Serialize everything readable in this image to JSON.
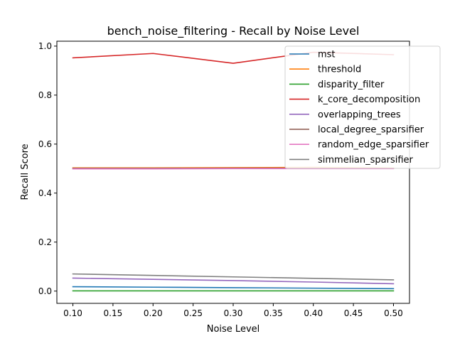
{
  "chart_data": {
    "type": "line",
    "title": "bench_noise_filtering - Recall by Noise Level",
    "xlabel": "Noise Level",
    "ylabel": "Recall Score",
    "x": [
      0.1,
      0.2,
      0.3,
      0.4,
      0.5
    ],
    "xlim": [
      0.08,
      0.52
    ],
    "ylim": [
      -0.05,
      1.02
    ],
    "xticks": [
      "0.10",
      "0.15",
      "0.20",
      "0.25",
      "0.30",
      "0.35",
      "0.40",
      "0.45",
      "0.50"
    ],
    "yticks": [
      "0.0",
      "0.2",
      "0.4",
      "0.6",
      "0.8",
      "1.0"
    ],
    "grid": false,
    "legend_position": "top-right",
    "series": [
      {
        "name": "mst",
        "color": "#1f77b4",
        "values": [
          0.018,
          0.016,
          0.014,
          0.012,
          0.01
        ]
      },
      {
        "name": "threshold",
        "color": "#ff7f0e",
        "values": [
          0.503,
          0.503,
          0.504,
          0.505,
          0.503
        ]
      },
      {
        "name": "disparity_filter",
        "color": "#2ca02c",
        "values": [
          0.001,
          0.001,
          0.001,
          0.001,
          0.001
        ]
      },
      {
        "name": "k_core_decomposition",
        "color": "#d62728",
        "values": [
          0.952,
          0.97,
          0.93,
          0.975,
          0.965
        ]
      },
      {
        "name": "overlapping_trees",
        "color": "#9467bd",
        "values": [
          0.053,
          0.048,
          0.043,
          0.037,
          0.03
        ]
      },
      {
        "name": "local_degree_sparsifier",
        "color": "#8c564b",
        "values": [
          0.501,
          0.501,
          0.502,
          0.502,
          0.501
        ]
      },
      {
        "name": "random_edge_sparsifier",
        "color": "#e377c2",
        "values": [
          0.499,
          0.499,
          0.5,
          0.5,
          0.5
        ]
      },
      {
        "name": "simmelian_sparsifier",
        "color": "#7f7f7f",
        "values": [
          0.07,
          0.064,
          0.058,
          0.052,
          0.046
        ]
      }
    ]
  }
}
